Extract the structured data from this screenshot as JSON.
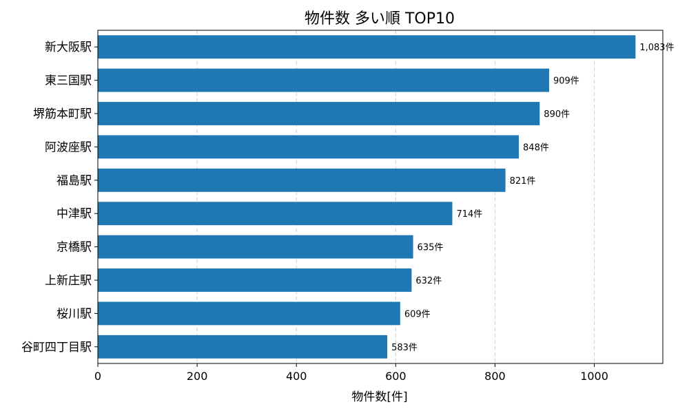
{
  "chart_data": {
    "type": "bar",
    "orientation": "horizontal",
    "title": "物件数 多い順 TOP10",
    "xlabel": "物件数[件]",
    "ylabel": "",
    "categories": [
      "新大阪駅",
      "東三国駅",
      "堺筋本町駅",
      "阿波座駅",
      "福島駅",
      "中津駅",
      "京橋駅",
      "上新庄駅",
      "桜川駅",
      "谷町四丁目駅"
    ],
    "values": [
      1083,
      909,
      890,
      848,
      821,
      714,
      635,
      632,
      609,
      583
    ],
    "data_labels": [
      "1,083件",
      "909件",
      "890件",
      "848件",
      "821件",
      "714件",
      "635件",
      "632件",
      "609件",
      "583件"
    ],
    "xlim": [
      0,
      1138
    ],
    "xticks": [
      0,
      200,
      400,
      600,
      800,
      1000
    ],
    "grid": "x-dashed",
    "bar_color": "#1f77b4"
  }
}
